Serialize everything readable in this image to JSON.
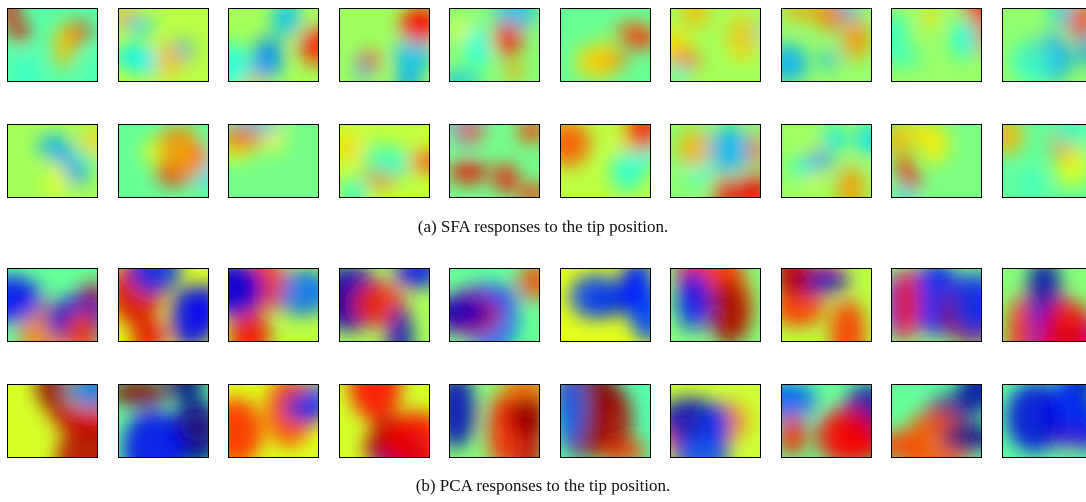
{
  "figures": [
    {
      "caption": "(a) SFA responses to the tip position."
    },
    {
      "caption": "(b) PCA responses to the tip position."
    }
  ]
}
